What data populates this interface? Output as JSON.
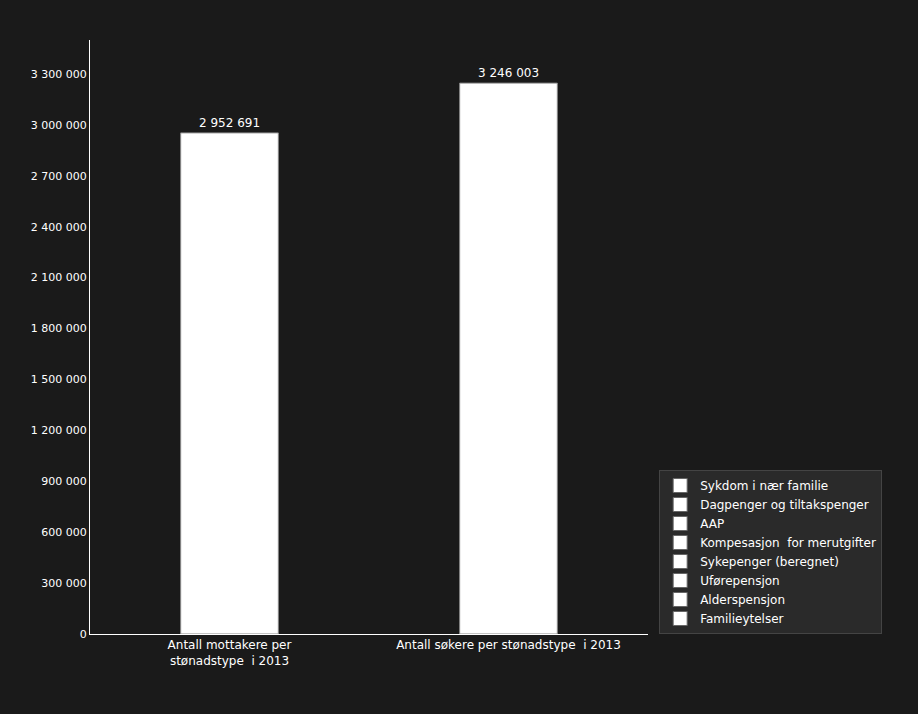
{
  "chart_data": {
    "type": "bar",
    "categories": [
      "Antall mottakere per\nstønadstype  i 2013",
      "Antall søkere per stønadstype  i 2013"
    ],
    "values": [
      2952691,
      3246003
    ],
    "value_labels": [
      "2 952 691",
      "3 246 003"
    ],
    "data_labels": true,
    "color": "#ffffff",
    "ylim": [
      0,
      3500000
    ],
    "yticks": [
      0,
      {
        "value": 300000,
        "label": "300 000"
      },
      {
        "value": 600000,
        "label": "600 000"
      },
      {
        "value": 900000,
        "label": "900 000"
      },
      {
        "value": 1200000,
        "label": "1 200 000"
      },
      {
        "value": 1500000,
        "label": "1 500 000"
      },
      {
        "value": 1800000,
        "label": "1 800 000"
      },
      {
        "value": 2100000,
        "label": "2 100 000"
      },
      {
        "value": 2400000,
        "label": "2 400 000"
      },
      {
        "value": 2700000,
        "label": "2 700 000"
      },
      {
        "value": 3000000,
        "label": "3 000 000"
      },
      {
        "value": 3300000,
        "label": "3 300 000"
      }
    ],
    "grid": false,
    "legend": "lower right",
    "legend_entries": [
      {
        "name": "Sykdom i nær familie",
        "color": "#ffffff"
      },
      {
        "name": "Dagpenger og tiltakspenger",
        "color": "#ffffff"
      },
      {
        "name": "AAP",
        "color": "#ffffff"
      },
      {
        "name": "Kompesasjon  for merutgifter",
        "color": "#ffffff"
      },
      {
        "name": "Sykepenger (beregnet)",
        "color": "#ffffff"
      },
      {
        "name": "Uførepensjon",
        "color": "#ffffff"
      },
      {
        "name": "Alderspensjon",
        "color": "#ffffff"
      },
      {
        "name": "Familieytelser",
        "color": "#ffffff"
      }
    ]
  }
}
